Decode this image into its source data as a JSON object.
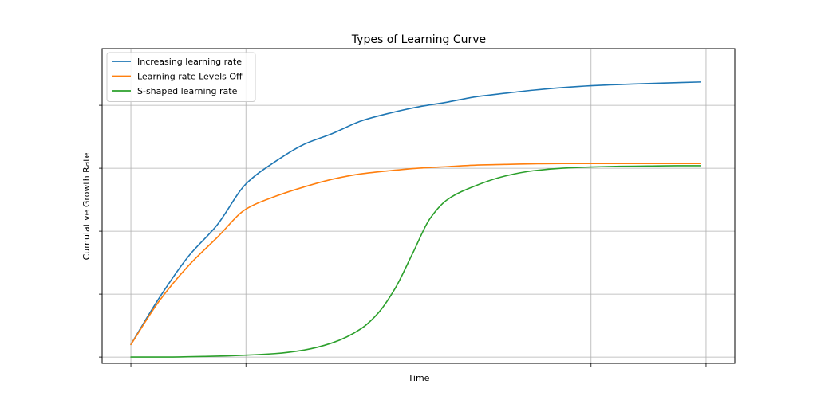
{
  "chart_data": {
    "type": "line",
    "title": "Types of Learning Curve",
    "xlabel": "Time",
    "ylabel": "Cumulative Growth Rate",
    "xlim": [
      -0.25,
      5.25
    ],
    "ylim": [
      -0.02,
      0.98
    ],
    "x_ticks": [
      0,
      1,
      2,
      3,
      4,
      5
    ],
    "y_ticks": [
      0,
      0.2,
      0.4,
      0.6,
      0.8
    ],
    "tick_labels_visible": false,
    "grid": true,
    "legend_position": "top-left",
    "series": [
      {
        "name": "Increasing learning rate",
        "color": "#1f77b4",
        "x": [
          0,
          0.25,
          0.5,
          0.75,
          1.0,
          1.25,
          1.5,
          1.75,
          2.0,
          2.25,
          2.5,
          2.75,
          3.0,
          3.25,
          3.5,
          3.75,
          4.0,
          4.25,
          4.5,
          4.75,
          4.95
        ],
        "y": [
          0.04,
          0.19,
          0.32,
          0.42,
          0.55,
          0.62,
          0.675,
          0.71,
          0.75,
          0.775,
          0.795,
          0.81,
          0.827,
          0.838,
          0.848,
          0.856,
          0.862,
          0.866,
          0.869,
          0.872,
          0.874
        ]
      },
      {
        "name": "Learning rate Levels Off",
        "color": "#ff7f0e",
        "x": [
          0,
          0.25,
          0.5,
          0.75,
          1.0,
          1.25,
          1.5,
          1.75,
          2.0,
          2.25,
          2.5,
          2.75,
          3.0,
          3.25,
          3.5,
          3.75,
          4.0,
          4.25,
          4.5,
          4.75,
          4.95
        ],
        "y": [
          0.04,
          0.18,
          0.29,
          0.38,
          0.47,
          0.51,
          0.54,
          0.565,
          0.582,
          0.592,
          0.6,
          0.605,
          0.61,
          0.612,
          0.614,
          0.615,
          0.615,
          0.615,
          0.615,
          0.615,
          0.615
        ]
      },
      {
        "name": "S-shaped learning rate",
        "color": "#2ca02c",
        "x": [
          0,
          0.25,
          0.5,
          0.75,
          1.0,
          1.25,
          1.5,
          1.75,
          2.0,
          2.15,
          2.3,
          2.45,
          2.6,
          2.75,
          3.0,
          3.25,
          3.5,
          3.75,
          4.0,
          4.25,
          4.5,
          4.75,
          4.95
        ],
        "y": [
          0.0,
          0.0,
          0.001,
          0.003,
          0.006,
          0.011,
          0.022,
          0.045,
          0.09,
          0.14,
          0.22,
          0.33,
          0.44,
          0.5,
          0.545,
          0.575,
          0.592,
          0.6,
          0.604,
          0.606,
          0.607,
          0.608,
          0.608
        ]
      }
    ]
  }
}
